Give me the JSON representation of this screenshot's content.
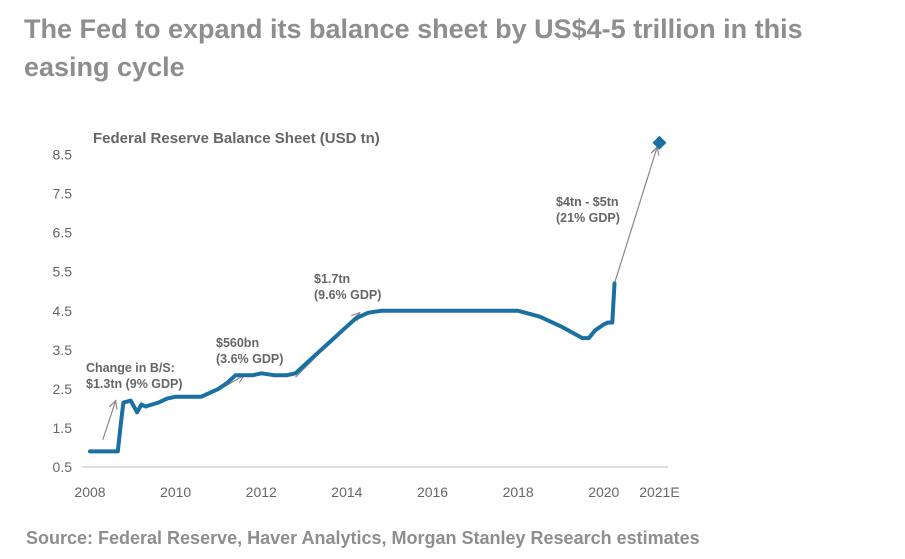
{
  "headline": "The Fed to expand its balance sheet by US$4-5 trillion in this easing cycle",
  "source": "Source: Federal Reserve, Haver Analytics, Morgan Stanley Research estimates",
  "colors": {
    "line": "#1a6fa3",
    "text": "#666666",
    "headline": "#8e8e8e",
    "arrow": "#888888"
  },
  "chart_data": {
    "type": "line",
    "title": "Federal Reserve Balance Sheet (USD tn)",
    "xlabel": "",
    "ylabel": "",
    "xlim": [
      2008,
      2021.5
    ],
    "ylim": [
      0.5,
      9.0
    ],
    "y_ticks": [
      0.5,
      1.5,
      2.5,
      3.5,
      4.5,
      5.5,
      6.5,
      7.5,
      8.5
    ],
    "y_tick_labels": [
      "0.5",
      "1.5",
      "2.5",
      "3.5",
      "4.5",
      "5.5",
      "6.5",
      "7.5",
      "8.5"
    ],
    "x_ticks": [
      2008,
      2010,
      2012,
      2014,
      2016,
      2018,
      2020,
      2021.3
    ],
    "x_tick_labels": [
      "2008",
      "2010",
      "2012",
      "2014",
      "2016",
      "2018",
      "2020",
      "2021E"
    ],
    "grid": false,
    "series": [
      {
        "type": "line",
        "x": [
          2008.0,
          2008.65,
          2008.72,
          2008.78,
          2008.95,
          2009.1,
          2009.2,
          2009.3,
          2009.45,
          2009.6,
          2009.8,
          2010.0,
          2010.3,
          2010.6,
          2010.8,
          2011.0,
          2011.2,
          2011.4,
          2011.5,
          2011.8,
          2012.0,
          2012.3,
          2012.6,
          2012.8,
          2013.0,
          2013.3,
          2013.6,
          2013.9,
          2014.2,
          2014.5,
          2014.8,
          2015.5,
          2016.5,
          2017.5,
          2018.0,
          2018.5,
          2019.0,
          2019.5,
          2019.65,
          2019.8,
          2020.0,
          2020.1,
          2020.2,
          2020.25
        ],
        "y": [
          0.9,
          0.9,
          1.6,
          2.15,
          2.2,
          1.9,
          2.1,
          2.05,
          2.1,
          2.15,
          2.25,
          2.3,
          2.3,
          2.3,
          2.4,
          2.5,
          2.65,
          2.85,
          2.85,
          2.85,
          2.9,
          2.85,
          2.85,
          2.9,
          3.1,
          3.4,
          3.7,
          4.0,
          4.3,
          4.45,
          4.5,
          4.5,
          4.5,
          4.5,
          4.5,
          4.35,
          4.1,
          3.8,
          3.8,
          4.0,
          4.15,
          4.2,
          4.2,
          5.2
        ]
      },
      {
        "type": "marker",
        "x": [
          2021.3
        ],
        "y": [
          8.8
        ]
      }
    ],
    "annotations": [
      {
        "lines": [
          "Change in B/S:",
          "$1.3tn (9% GDP)"
        ],
        "arrow_from": [
          2008.3,
          1.2
        ],
        "arrow_to": [
          2008.6,
          2.2
        ]
      },
      {
        "lines": [
          "$560bn",
          "(3.6% GDP)"
        ],
        "arrow_from": [
          2011.05,
          2.5
        ],
        "arrow_to": [
          2011.6,
          2.85
        ]
      },
      {
        "lines": [
          "$1.7tn",
          "(9.6% GDP)"
        ],
        "arrow_from": [
          2012.8,
          2.8
        ],
        "arrow_to": [
          2014.3,
          4.45
        ]
      },
      {
        "lines": [
          "$4tn - $5tn",
          "(21% GDP)"
        ],
        "arrow_from": [
          2020.25,
          5.2
        ],
        "arrow_to": [
          2021.25,
          8.7
        ]
      }
    ]
  }
}
